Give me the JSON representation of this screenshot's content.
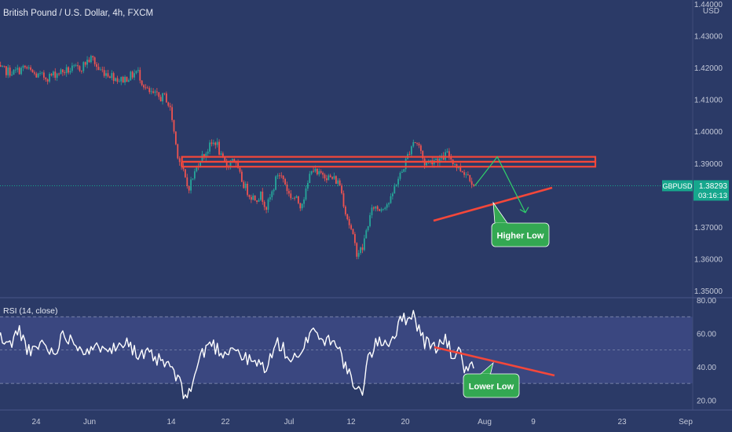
{
  "colors": {
    "background": "#2b3a67",
    "rsi_band": "#3a4780",
    "up_candle": "#26a69a",
    "down_candle": "#ef5350",
    "annotation_red": "#f4473a",
    "annotation_green": "#33a852",
    "axis_text": "#c3c8d8",
    "price_tag": "#16a78d"
  },
  "header": {
    "title": "British Pound / U.S. Dollar, 4h, FXCM"
  },
  "chart_data": [
    {
      "type": "candlestick",
      "symbol": "GBPUSD",
      "title": "British Pound / U.S. Dollar, 4h, FXCM",
      "currency_label": "USD",
      "ylim": [
        1.35,
        1.44
      ],
      "y_ticks": [
        "1.44000",
        "1.43000",
        "1.42000",
        "1.41000",
        "1.40000",
        "1.39000",
        "1.38000",
        "1.37000",
        "1.36000",
        "1.35000"
      ],
      "x_ticks": [
        "24",
        "Jun",
        "14",
        "22",
        "Jul",
        "12",
        "20",
        "Aug",
        "9",
        "23",
        "Sep"
      ],
      "current_price": "1.38293",
      "countdown": "03:16:13",
      "path": [
        [
          "May 17",
          1.4195
        ],
        [
          "May 20",
          1.4185
        ],
        [
          "May 22",
          1.42
        ],
        [
          "May 24",
          1.4175
        ],
        [
          "May 26",
          1.417
        ],
        [
          "May 28",
          1.4185
        ],
        [
          "Jun 1",
          1.42
        ],
        [
          "Jun 2",
          1.422
        ],
        [
          "Jun 3",
          1.423
        ],
        [
          "Jun 4",
          1.4195
        ],
        [
          "Jun 6",
          1.418
        ],
        [
          "Jun 8",
          1.416
        ],
        [
          "Jun 10",
          1.4175
        ],
        [
          "Jun 11",
          1.419
        ],
        [
          "Jun 12",
          1.415
        ],
        [
          "Jun 13",
          1.412
        ],
        [
          "Jun 14",
          1.4115
        ],
        [
          "Jun 15",
          1.4105
        ],
        [
          "Jun 16",
          1.411
        ],
        [
          "Jun 17",
          1.406
        ],
        [
          "Jun 18",
          1.394
        ],
        [
          "Jun 19",
          1.388
        ],
        [
          "Jun 20",
          1.382
        ],
        [
          "Jun 21",
          1.386
        ],
        [
          "Jun 22",
          1.391
        ],
        [
          "Jun 23",
          1.393
        ],
        [
          "Jun 24",
          1.3955
        ],
        [
          "Jun 25",
          1.397
        ],
        [
          "Jun 26",
          1.391
        ],
        [
          "Jun 27",
          1.389
        ],
        [
          "Jun 28",
          1.392
        ],
        [
          "Jun 29",
          1.387
        ],
        [
          "Jun 30",
          1.383
        ],
        [
          "Jul 1",
          1.38
        ],
        [
          "Jul 2",
          1.379
        ],
        [
          "Jul 3",
          1.38
        ],
        [
          "Jul 4",
          1.376
        ],
        [
          "Jul 5",
          1.381
        ],
        [
          "Jul 6",
          1.387
        ],
        [
          "Jul 7",
          1.385
        ],
        [
          "Jul 8",
          1.38
        ],
        [
          "Jul 9",
          1.379
        ],
        [
          "Jul 10",
          1.377
        ],
        [
          "Jul 11",
          1.381
        ],
        [
          "Jul 12",
          1.389
        ],
        [
          "Jul 13",
          1.386
        ],
        [
          "Jul 14",
          1.387
        ],
        [
          "Jul 15",
          1.3855
        ],
        [
          "Jul 16",
          1.385
        ],
        [
          "Jul 17",
          1.3835
        ],
        [
          "Jul 18",
          1.375
        ],
        [
          "Jul 19",
          1.369
        ],
        [
          "Jul 20",
          1.362
        ],
        [
          "Jul 21",
          1.363
        ],
        [
          "Jul 22",
          1.371
        ],
        [
          "Jul 23",
          1.3765
        ],
        [
          "Jul 24",
          1.3755
        ],
        [
          "Jul 25",
          1.377
        ],
        [
          "Jul 26",
          1.378
        ],
        [
          "Jul 27",
          1.384
        ],
        [
          "Jul 28",
          1.387
        ],
        [
          "Jul 29",
          1.392
        ],
        [
          "Jul 30",
          1.397
        ],
        [
          "Jul 31",
          1.396
        ],
        [
          "Aug 1",
          1.39
        ],
        [
          "Aug 2",
          1.3905
        ],
        [
          "Aug 3",
          1.3915
        ],
        [
          "Aug 4",
          1.391
        ],
        [
          "Aug 5",
          1.393
        ],
        [
          "Aug 6",
          1.391
        ],
        [
          "Aug 7",
          1.3885
        ],
        [
          "Aug 8",
          1.3875
        ],
        [
          "Aug 9",
          1.386
        ],
        [
          "Aug 10",
          1.3829
        ]
      ],
      "annotations": {
        "resistance_zone": [
          1.3889,
          1.392
        ],
        "higher_low_label": "Higher Low",
        "projection": [
          [
            "Aug 10",
            1.3829
          ],
          [
            "Aug 14",
            1.392
          ],
          [
            "Aug 19",
            1.3745
          ]
        ]
      }
    },
    {
      "type": "line",
      "title": "RSI (14, close)",
      "ylim": [
        15,
        80
      ],
      "y_ticks": [
        "80.00",
        "60.00",
        "40.00",
        "20.00"
      ],
      "band": [
        30,
        70
      ],
      "mid_line": 50,
      "series": [
        {
          "values": [
            [
              "May 17",
              60
            ],
            [
              "May 19",
              52
            ],
            [
              "May 21",
              62
            ],
            [
              "May 23",
              47
            ],
            [
              "May 25",
              55
            ],
            [
              "May 27",
              48
            ],
            [
              "May 29",
              60
            ],
            [
              "Jun 1",
              52
            ],
            [
              "Jun 3",
              48
            ],
            [
              "Jun 5",
              55
            ],
            [
              "Jun 7",
              50
            ],
            [
              "Jun 9",
              58
            ],
            [
              "Jun 11",
              46
            ],
            [
              "Jun 13",
              47
            ],
            [
              "Jun 15",
              43
            ],
            [
              "Jun 17",
              40
            ],
            [
              "Jun 19",
              26
            ],
            [
              "Jun 20",
              22
            ],
            [
              "Jun 21",
              32
            ],
            [
              "Jun 22",
              45
            ],
            [
              "Jun 24",
              55
            ],
            [
              "Jun 26",
              48
            ],
            [
              "Jun 28",
              52
            ],
            [
              "Jun 30",
              45
            ],
            [
              "Jul 2",
              42
            ],
            [
              "Jul 4",
              40
            ],
            [
              "Jul 6",
              55
            ],
            [
              "Jul 8",
              45
            ],
            [
              "Jul 10",
              44
            ],
            [
              "Jul 12",
              65
            ],
            [
              "Jul 14",
              55
            ],
            [
              "Jul 16",
              58
            ],
            [
              "Jul 18",
              40
            ],
            [
              "Jul 20",
              24
            ],
            [
              "Jul 21",
              26
            ],
            [
              "Jul 22",
              45
            ],
            [
              "Jul 24",
              56
            ],
            [
              "Jul 26",
              55
            ],
            [
              "Jul 28",
              68
            ],
            [
              "Jul 30",
              72
            ],
            [
              "Aug 1",
              55
            ],
            [
              "Aug 3",
              52
            ],
            [
              "Aug 5",
              56
            ],
            [
              "Aug 6",
              45
            ],
            [
              "Aug 7",
              52
            ],
            [
              "Aug 8",
              40
            ],
            [
              "Aug 9",
              38
            ],
            [
              "Aug 10",
              39
            ]
          ]
        }
      ],
      "annotations": {
        "lower_low_label": "Lower Low"
      }
    }
  ]
}
